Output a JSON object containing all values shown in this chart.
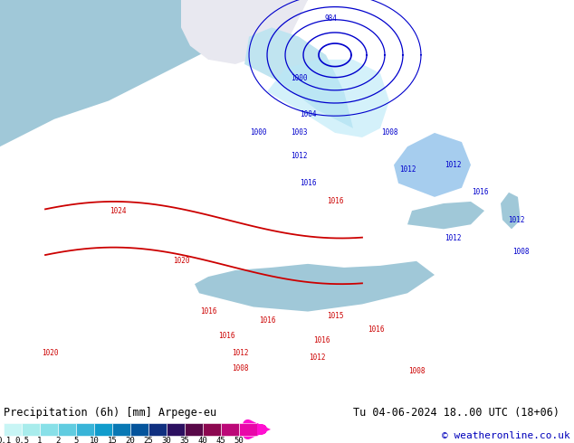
{
  "title_left": "Precipitation (6h) [mm] Arpege-eu",
  "title_right": "Tu 04-06-2024 18..00 UTC (18+06)",
  "credit": "© weatheronline.co.uk",
  "colorbar_values": [
    "0.1",
    "0.5",
    "1",
    "2",
    "5",
    "10",
    "15",
    "20",
    "25",
    "30",
    "35",
    "40",
    "45",
    "50"
  ],
  "colorbar_colors": [
    "#c8f5f5",
    "#a8ecec",
    "#88e0e8",
    "#60cce0",
    "#38b4d8",
    "#109ccc",
    "#0878b4",
    "#04549c",
    "#103080",
    "#2c1060",
    "#580848",
    "#8c0850",
    "#bc0878",
    "#e808a8",
    "#ff10d0"
  ],
  "fig_width": 6.34,
  "fig_height": 4.9,
  "dpi": 100,
  "background_color": "#ffffff",
  "bottom_bar_bg": "#d8d8d8",
  "text_color": "#000000",
  "credit_color": "#0000bb",
  "font_family": "monospace",
  "title_fontsize": 8.5,
  "credit_fontsize": 8,
  "cb_label_fontsize": 6.5,
  "map_colors": {
    "land": "#c8c878",
    "ocean_dark": "#a0c8d8",
    "ocean_light": "#c0e4f0",
    "greenland": "#e8e8e8",
    "precip_light": "#b8e8f8",
    "precip_medium": "#80b8e8",
    "precip_dark": "#2060b8"
  }
}
